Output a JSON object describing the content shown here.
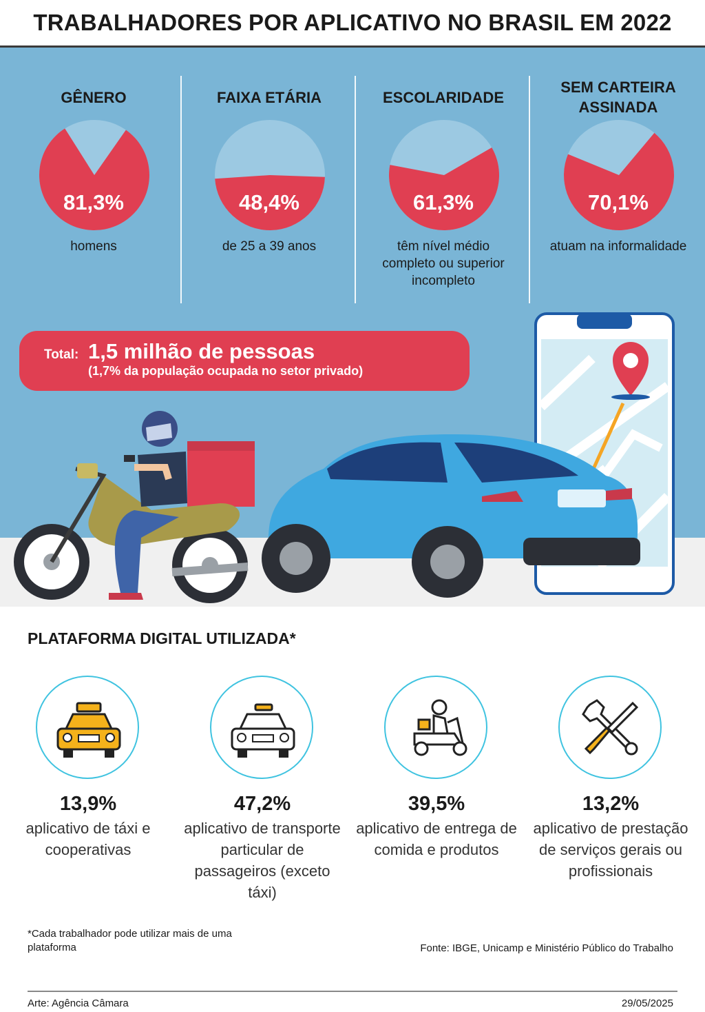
{
  "title": "TRABALHADORES POR APLICATIVO NO BRASIL EM 2022",
  "colors": {
    "accent_red": "#e03f52",
    "panel_blue": "#7ab5d6",
    "pie_light": "#9cc9e2",
    "icon_ring": "#3fc3e0",
    "icon_yellow": "#f5b21b"
  },
  "stats": [
    {
      "heading": "GÊNERO",
      "value_label": "81,3%",
      "description": "homens"
    },
    {
      "heading": "FAIXA ETÁRIA",
      "value_label": "48,4%",
      "description": "de 25 a 39 anos"
    },
    {
      "heading": "ESCOLARIDADE",
      "value_label": "61,3%",
      "description": "têm nível médio completo ou superior incompleto"
    },
    {
      "heading": "SEM CARTEIRA ASSINADA",
      "value_label": "70,1%",
      "description": "atuam na informalidade"
    }
  ],
  "total": {
    "label": "Total:",
    "value": "1,5 milhão de pessoas",
    "note": "(1,7% da população ocupada no setor privado)"
  },
  "platform": {
    "title": "PLATAFORMA DIGITAL UTILIZADA*",
    "items": [
      {
        "icon": "taxi-icon",
        "value_label": "13,9%",
        "description": "aplicativo de táxi e cooperativas"
      },
      {
        "icon": "car-icon",
        "value_label": "47,2%",
        "description": "aplicativo de transporte particular de passageiros (exceto táxi)"
      },
      {
        "icon": "delivery-scooter-icon",
        "value_label": "39,5%",
        "description": "aplicativo de entrega de comida e produtos"
      },
      {
        "icon": "tools-icon",
        "value_label": "13,2%",
        "description": "aplicativo de prestação de serviços gerais ou profissionais"
      }
    ]
  },
  "footnote": "*Cada trabalhador pode utilizar mais de uma plataforma",
  "source": "Fonte: IBGE, Unicamp e Ministério Público do Trabalho",
  "credit": "Arte: Agência Câmara",
  "date": "29/05/2025",
  "chart_data": {
    "type": "pie",
    "title": "TRABALHADORES POR APLICATIVO NO BRASIL EM 2022",
    "series": [
      {
        "name": "GÊNERO",
        "values": [
          81.3,
          18.7
        ]
      },
      {
        "name": "FAIXA ETÁRIA",
        "values": [
          48.4,
          51.6
        ]
      },
      {
        "name": "ESCOLARIDADE",
        "values": [
          61.3,
          38.7
        ]
      },
      {
        "name": "SEM CARTEIRA ASSINADA",
        "values": [
          70.1,
          29.9
        ]
      }
    ],
    "platform_shares": [
      13.9,
      47.2,
      39.5,
      13.2
    ]
  }
}
